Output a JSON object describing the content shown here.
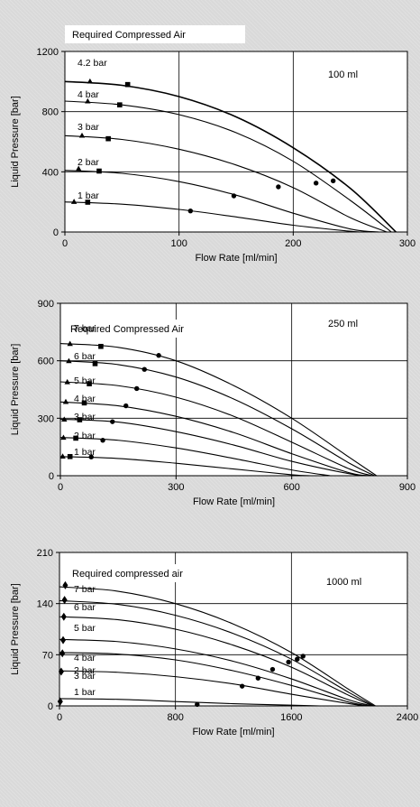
{
  "chart_data": [
    {
      "type": "line",
      "legend_title": "Required Compressed Air",
      "annotation": "100 ml",
      "xlabel": "Flow Rate [ml/min]",
      "ylabel": "Liquid Pressure [bar]",
      "xlim": [
        0,
        300
      ],
      "ylim": [
        0,
        1200
      ],
      "xticks": [
        "0",
        "100",
        "200",
        "300"
      ],
      "yticks": [
        "0",
        "400",
        "800",
        "1200"
      ],
      "grid": true,
      "series": [
        {
          "name": "4.2 bar",
          "x": [
            0,
            50,
            100,
            150,
            200,
            250,
            290
          ],
          "y": [
            1000,
            975,
            900,
            765,
            560,
            290,
            0
          ],
          "markers": [
            {
              "x": 22,
              "y": 1000,
              "shape": "triangle"
            },
            {
              "x": 55,
              "y": 980,
              "shape": "square"
            },
            {
              "x": 235,
              "y": 340,
              "shape": "circle"
            }
          ]
        },
        {
          "name": "4 bar",
          "x": [
            0,
            50,
            100,
            150,
            200,
            250,
            286
          ],
          "y": [
            870,
            845,
            780,
            660,
            470,
            210,
            0
          ],
          "markers": [
            {
              "x": 20,
              "y": 868,
              "shape": "triangle"
            },
            {
              "x": 48,
              "y": 845,
              "shape": "square"
            },
            {
              "x": 220,
              "y": 325,
              "shape": "circle"
            }
          ]
        },
        {
          "name": "3 bar",
          "x": [
            0,
            50,
            100,
            150,
            200,
            250,
            282
          ],
          "y": [
            640,
            615,
            550,
            445,
            295,
            95,
            0
          ],
          "markers": [
            {
              "x": 15,
              "y": 640,
              "shape": "triangle"
            },
            {
              "x": 38,
              "y": 620,
              "shape": "square"
            },
            {
              "x": 187,
              "y": 300,
              "shape": "circle"
            }
          ]
        },
        {
          "name": "2 bar",
          "x": [
            0,
            50,
            100,
            150,
            200,
            250,
            275
          ],
          "y": [
            410,
            390,
            335,
            245,
            125,
            20,
            0
          ],
          "markers": [
            {
              "x": 12,
              "y": 420,
              "shape": "triangle"
            },
            {
              "x": 30,
              "y": 405,
              "shape": "square"
            },
            {
              "x": 148,
              "y": 240,
              "shape": "circle"
            }
          ]
        },
        {
          "name": "1 bar",
          "x": [
            0,
            50,
            100,
            150,
            200,
            250,
            260
          ],
          "y": [
            200,
            185,
            150,
            100,
            45,
            5,
            0
          ],
          "markers": [
            {
              "x": 8,
              "y": 200,
              "shape": "triangle"
            },
            {
              "x": 20,
              "y": 198,
              "shape": "square"
            },
            {
              "x": 110,
              "y": 140,
              "shape": "circle"
            }
          ]
        }
      ]
    },
    {
      "type": "line",
      "legend_title": "Required Compressed Air",
      "annotation": "250 ml",
      "xlabel": "Flow Rate [ml/min]",
      "ylabel": "Liquid Pressure [bar]",
      "xlim": [
        0,
        900
      ],
      "ylim": [
        0,
        900
      ],
      "xticks": [
        "0",
        "300",
        "600",
        "900"
      ],
      "yticks": [
        "0",
        "300",
        "600",
        "900"
      ],
      "grid": true,
      "series": [
        {
          "name": "7 bar",
          "x": [
            0,
            150,
            300,
            450,
            600,
            750,
            820
          ],
          "y": [
            690,
            670,
            600,
            470,
            300,
            95,
            0
          ],
          "markers": [
            {
              "x": 25,
              "y": 688,
              "shape": "triangle"
            },
            {
              "x": 105,
              "y": 675,
              "shape": "square"
            },
            {
              "x": 255,
              "y": 628,
              "shape": "circle"
            }
          ]
        },
        {
          "name": "6 bar",
          "x": [
            0,
            150,
            300,
            450,
            600,
            750,
            815
          ],
          "y": [
            600,
            580,
            515,
            400,
            245,
            65,
            0
          ],
          "markers": [
            {
              "x": 22,
              "y": 598,
              "shape": "triangle"
            },
            {
              "x": 90,
              "y": 585,
              "shape": "square"
            },
            {
              "x": 218,
              "y": 555,
              "shape": "circle"
            }
          ]
        },
        {
          "name": "5 bar",
          "x": [
            0,
            150,
            300,
            450,
            600,
            750,
            810
          ],
          "y": [
            490,
            470,
            410,
            310,
            175,
            35,
            0
          ],
          "markers": [
            {
              "x": 18,
              "y": 488,
              "shape": "triangle"
            },
            {
              "x": 75,
              "y": 480,
              "shape": "square"
            },
            {
              "x": 198,
              "y": 455,
              "shape": "circle"
            }
          ]
        },
        {
          "name": "4 bar",
          "x": [
            0,
            150,
            300,
            450,
            600,
            750,
            805
          ],
          "y": [
            385,
            365,
            310,
            225,
            115,
            15,
            0
          ],
          "markers": [
            {
              "x": 14,
              "y": 385,
              "shape": "triangle"
            },
            {
              "x": 62,
              "y": 380,
              "shape": "square"
            },
            {
              "x": 170,
              "y": 365,
              "shape": "circle"
            }
          ]
        },
        {
          "name": "3 bar",
          "x": [
            0,
            150,
            300,
            450,
            600,
            750,
            800
          ],
          "y": [
            295,
            280,
            230,
            160,
            75,
            10,
            0
          ],
          "markers": [
            {
              "x": 10,
              "y": 293,
              "shape": "triangle"
            },
            {
              "x": 50,
              "y": 292,
              "shape": "square"
            },
            {
              "x": 135,
              "y": 282,
              "shape": "circle"
            }
          ]
        },
        {
          "name": "2 bar",
          "x": [
            0,
            150,
            300,
            450,
            600,
            700
          ],
          "y": [
            200,
            185,
            145,
            90,
            30,
            0
          ],
          "markers": [
            {
              "x": 8,
              "y": 198,
              "shape": "triangle"
            },
            {
              "x": 40,
              "y": 196,
              "shape": "square"
            },
            {
              "x": 110,
              "y": 185,
              "shape": "circle"
            }
          ]
        },
        {
          "name": "1 bar",
          "x": [
            0,
            150,
            300,
            450,
            600,
            650
          ],
          "y": [
            100,
            90,
            65,
            35,
            5,
            0
          ],
          "markers": [
            {
              "x": 6,
              "y": 100,
              "shape": "triangle"
            },
            {
              "x": 25,
              "y": 100,
              "shape": "square"
            },
            {
              "x": 80,
              "y": 98,
              "shape": "circle"
            }
          ]
        }
      ]
    },
    {
      "type": "line",
      "legend_title": "Required compressed air",
      "annotation": "1000 ml",
      "xlabel": "Flow Rate [ml/min]",
      "ylabel": "Liquid Pressure [bar]",
      "xlim": [
        0,
        2400
      ],
      "ylim": [
        0,
        210
      ],
      "xticks": [
        "0",
        "800",
        "1600",
        "2400"
      ],
      "yticks": [
        "0",
        "70",
        "140",
        "210"
      ],
      "grid": true,
      "series": [
        {
          "name": "7 bar",
          "x": [
            0,
            400,
            800,
            1200,
            1600,
            2000,
            2180
          ],
          "y": [
            163,
            157,
            140,
            112,
            73,
            22,
            0
          ],
          "markers": [
            {
              "x": 40,
              "y": 165,
              "shape": "diamond"
            },
            {
              "x": 1680,
              "y": 68,
              "shape": "circle"
            }
          ]
        },
        {
          "name": "6 bar",
          "x": [
            0,
            400,
            800,
            1200,
            1600,
            2000,
            2170
          ],
          "y": [
            144,
            139,
            124,
            99,
            64,
            18,
            0
          ],
          "markers": [
            {
              "x": 35,
              "y": 145,
              "shape": "diamond"
            },
            {
              "x": 1640,
              "y": 64,
              "shape": "circle"
            }
          ]
        },
        {
          "name": "5 bar",
          "x": [
            0,
            400,
            800,
            1200,
            1600,
            2000,
            2165
          ],
          "y": [
            122,
            118,
            105,
            83,
            53,
            14,
            0
          ],
          "markers": [
            {
              "x": 30,
              "y": 122,
              "shape": "diamond"
            },
            {
              "x": 1580,
              "y": 60,
              "shape": "circle"
            }
          ]
        },
        {
          "name": "4 bar",
          "x": [
            0,
            400,
            800,
            1200,
            1600,
            2000,
            2160
          ],
          "y": [
            91,
            88,
            78,
            61,
            37,
            8,
            0
          ],
          "markers": [
            {
              "x": 25,
              "y": 90,
              "shape": "diamond"
            },
            {
              "x": 1470,
              "y": 50,
              "shape": "circle"
            }
          ]
        },
        {
          "name": "3 bar",
          "x": [
            0,
            400,
            800,
            1200,
            1600,
            2000,
            2150
          ],
          "y": [
            73,
            71,
            63,
            48,
            28,
            5,
            0
          ],
          "markers": [
            {
              "x": 20,
              "y": 72,
              "shape": "diamond"
            },
            {
              "x": 1370,
              "y": 38,
              "shape": "circle"
            }
          ]
        },
        {
          "name": "2 bar",
          "x": [
            0,
            400,
            800,
            1200,
            1600,
            2000,
            2130
          ],
          "y": [
            48,
            46,
            40,
            30,
            16,
            3,
            0
          ],
          "markers": [
            {
              "x": 12,
              "y": 47,
              "shape": "diamond"
            },
            {
              "x": 1260,
              "y": 27,
              "shape": "circle"
            }
          ]
        },
        {
          "name": "1 bar",
          "x": [
            0,
            400,
            800,
            1200,
            1600,
            1800
          ],
          "y": [
            10,
            9,
            6,
            3,
            1,
            0
          ],
          "markers": [
            {
              "x": 5,
              "y": 6,
              "shape": "diamond"
            },
            {
              "x": 950,
              "y": 2,
              "shape": "circle"
            }
          ]
        }
      ]
    }
  ]
}
